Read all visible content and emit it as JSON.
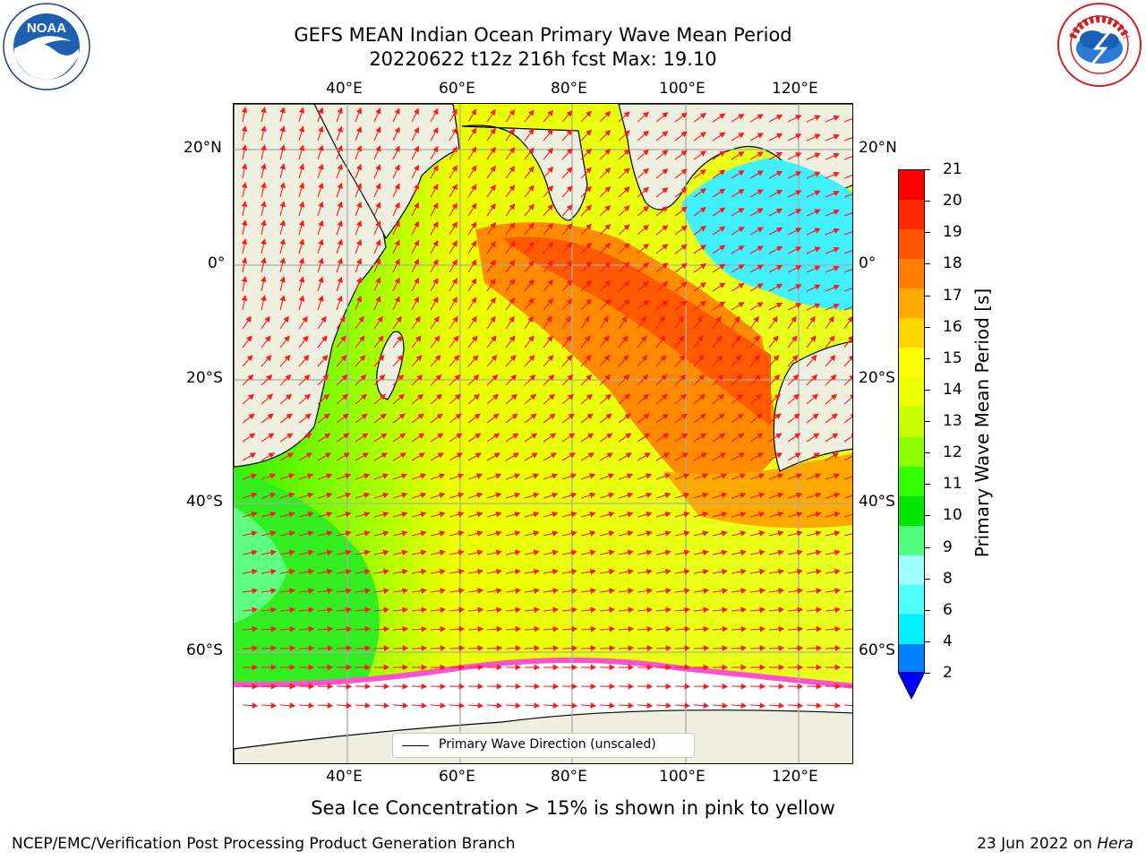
{
  "header": {
    "title_line1": "GEFS MEAN Indian Ocean Primary Wave Mean Period",
    "title_line2": "20220622 t12z 216h fcst   Max: 19.10"
  },
  "logos": {
    "left": {
      "name": "NOAA",
      "ring_text": "NATIONAL OCEANIC AND ATMOSPHERIC ADMINISTRATION · U.S. DEPARTMENT OF COMMERCE"
    },
    "right": {
      "name": "NATIONAL WEATHER SERVICE"
    }
  },
  "axes": {
    "lon_labels": [
      "40°E",
      "60°E",
      "80°E",
      "100°E",
      "120°E"
    ],
    "lat_labels": [
      "20°N",
      "0°",
      "20°S",
      "40°S",
      "60°S"
    ]
  },
  "colorbar": {
    "label": "Primary Wave Mean Period [s]",
    "ticks": [
      "21",
      "20",
      "19",
      "18",
      "17",
      "16",
      "15",
      "14",
      "13",
      "12",
      "11",
      "10",
      "9",
      "8",
      "6",
      "4",
      "2"
    ],
    "colors": [
      "#ff0000",
      "#ff2a00",
      "#ff5500",
      "#ff8000",
      "#ffaa00",
      "#ffd500",
      "#ffff00",
      "#ebff00",
      "#c8ff00",
      "#8cff00",
      "#32ff00",
      "#00e600",
      "#50ff80",
      "#a0ffff",
      "#50ffff",
      "#00f0ff",
      "#0080ff",
      "#0000ff"
    ]
  },
  "legend": {
    "label": "Primary Wave Direction (unscaled)"
  },
  "subtitle": "Sea Ice Concentration > 15% is shown in pink to yellow",
  "footer": {
    "left": "NCEP/EMC/Verification Post Processing Product Generation Branch",
    "right_prefix": "23 Jun 2022 on ",
    "right_host": "Hera"
  }
}
